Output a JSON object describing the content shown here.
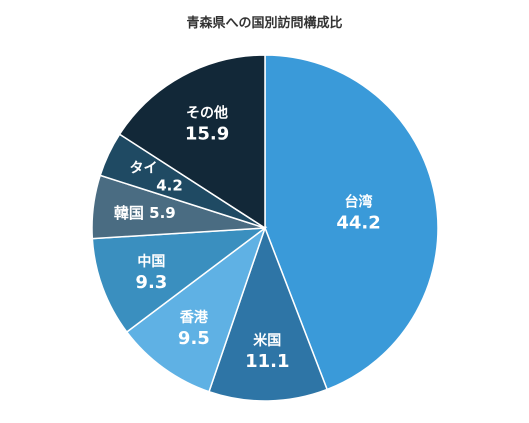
{
  "chart_data": {
    "type": "pie",
    "title": "青森県への国別訪問構成比",
    "start_angle_deg": 0,
    "direction": "clockwise",
    "slices": [
      {
        "label": "台湾",
        "value": 44.2,
        "value_text": "44.2",
        "color": "#3a9ad9",
        "label_style": "stacked"
      },
      {
        "label": "米国",
        "value": 11.1,
        "value_text": "11.1",
        "color": "#2e75a6",
        "label_style": "stacked"
      },
      {
        "label": "香港",
        "value": 9.5,
        "value_text": "9.5",
        "color": "#5fb1e4",
        "label_style": "stacked"
      },
      {
        "label": "中国",
        "value": 9.3,
        "value_text": "9.3",
        "color": "#3a8fbf",
        "label_style": "stacked"
      },
      {
        "label": "韓国",
        "value": 5.9,
        "value_text": "5.9",
        "color": "#4a6c82",
        "label_style": "inline"
      },
      {
        "label": "タイ",
        "value": 4.2,
        "value_text": "4.2",
        "color": "#1f4a63",
        "label_style": "diagonal"
      },
      {
        "label": "その他",
        "value": 15.9,
        "value_text": "15.9",
        "color": "#122838",
        "label_style": "stacked"
      }
    ]
  }
}
